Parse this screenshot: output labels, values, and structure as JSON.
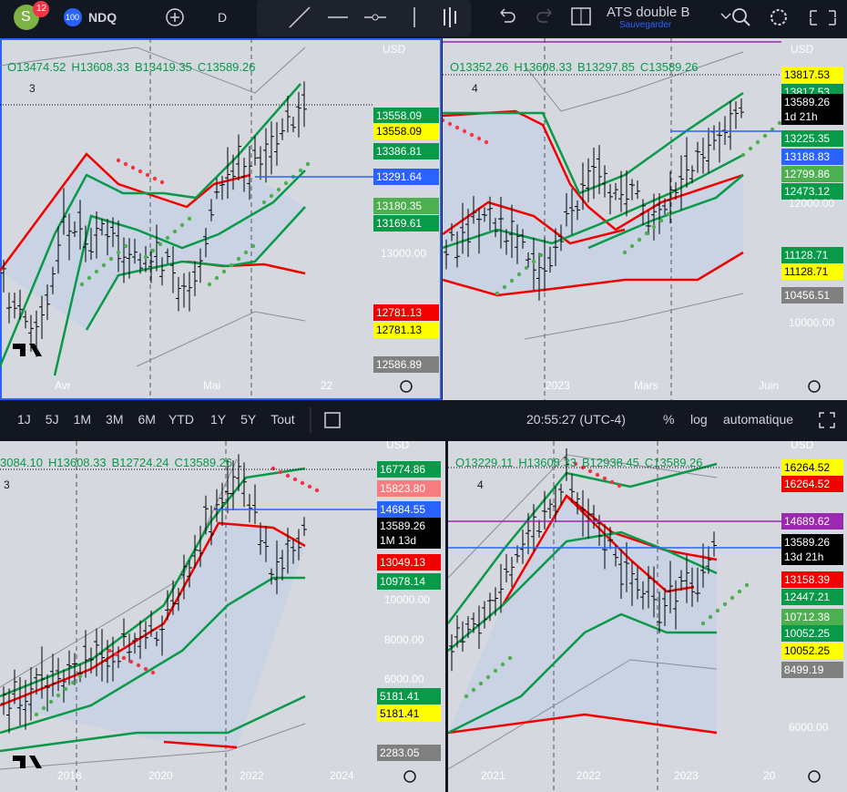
{
  "toolbar": {
    "avatar": "S",
    "badge": "12",
    "symbol_badge": "100",
    "symbol": "NDQ",
    "interval": "D",
    "layout_name": "ATS double B",
    "layout_status": "Sauvegarder"
  },
  "panels": [
    {
      "legend": [
        "O13474.52",
        "H13608.33",
        "B13419.35",
        "C13589.26"
      ],
      "count": "3",
      "currency": "USD",
      "tags": [
        {
          "text": "13558.09",
          "bg": "#089949",
          "fg": "#fff"
        },
        {
          "text": "13558.09",
          "bg": "#ffff00",
          "fg": "#000"
        },
        {
          "text": "13386.81",
          "bg": "#089949",
          "fg": "#fff"
        },
        {
          "text": "13291.64",
          "bg": "#2962ff",
          "fg": "#fff"
        },
        {
          "text": "13180.35",
          "bg": "#4caf50",
          "fg": "#fff"
        },
        {
          "text": "13169.61",
          "bg": "#089949",
          "fg": "#fff"
        },
        {
          "text": "12781.13",
          "bg": "#f20000",
          "fg": "#fff"
        },
        {
          "text": "12781.13",
          "bg": "#ffff00",
          "fg": "#000"
        },
        {
          "text": "12586.89",
          "bg": "#808080",
          "fg": "#fff"
        }
      ],
      "axis": [
        "13000.00"
      ],
      "times": [
        "Avr",
        "Mai",
        "22"
      ]
    },
    {
      "legend": [
        "O13352.26",
        "H13608.33",
        "B13297.85",
        "C13589.26"
      ],
      "count": "4",
      "currency": "USD",
      "tags": [
        {
          "text": "13817.53",
          "bg": "#ffff00",
          "fg": "#000"
        },
        {
          "text": "13817.53",
          "bg": "#089949",
          "fg": "#fff"
        },
        {
          "text": "13589.26",
          "bg": "#000000",
          "fg": "#fff",
          "sub": "1d 21h"
        },
        {
          "text": "13225.35",
          "bg": "#089949",
          "fg": "#fff"
        },
        {
          "text": "13188.83",
          "bg": "#2962ff",
          "fg": "#fff"
        },
        {
          "text": "12799.86",
          "bg": "#4caf50",
          "fg": "#fff"
        },
        {
          "text": "12473.12",
          "bg": "#089949",
          "fg": "#fff"
        },
        {
          "text": "11128.71",
          "bg": "#089949",
          "fg": "#fff"
        },
        {
          "text": "11128.71",
          "bg": "#ffff00",
          "fg": "#000"
        },
        {
          "text": "10456.51",
          "bg": "#808080",
          "fg": "#fff"
        }
      ],
      "axis": [
        "12000.00",
        "10000.00"
      ],
      "times": [
        "2023",
        "Mars",
        "Juin"
      ]
    },
    {
      "legend": [
        "3084.10",
        "H13608.33",
        "B12724.24",
        "C13589.26"
      ],
      "count": "3",
      "currency": "USD",
      "tags": [
        {
          "text": "16774.86",
          "bg": "#089949",
          "fg": "#fff"
        },
        {
          "text": "15823.80",
          "bg": "#f77c80",
          "fg": "#fff"
        },
        {
          "text": "14684.55",
          "bg": "#2962ff",
          "fg": "#fff"
        },
        {
          "text": "13589.26",
          "bg": "#000000",
          "fg": "#fff",
          "sub": "1M 13d"
        },
        {
          "text": "13049.13",
          "bg": "#f20000",
          "fg": "#fff"
        },
        {
          "text": "10978.14",
          "bg": "#089949",
          "fg": "#fff"
        },
        {
          "text": "5181.41",
          "bg": "#089949",
          "fg": "#fff"
        },
        {
          "text": "5181.41",
          "bg": "#ffff00",
          "fg": "#000"
        },
        {
          "text": "2283.05",
          "bg": "#808080",
          "fg": "#fff"
        }
      ],
      "axis": [
        "10000.00",
        "8000.00",
        "6000.00"
      ],
      "times": [
        "2018",
        "2020",
        "2022",
        "2024"
      ]
    },
    {
      "legend": [
        "O13229.11",
        "H13608.33",
        "B12938.45",
        "C13589.26"
      ],
      "count": "4",
      "currency": "USD",
      "tags": [
        {
          "text": "16264.52",
          "bg": "#ffff00",
          "fg": "#000"
        },
        {
          "text": "16264.52",
          "bg": "#f20000",
          "fg": "#fff"
        },
        {
          "text": "14689.62",
          "bg": "#9c27b0",
          "fg": "#fff"
        },
        {
          "text": "13589.26",
          "bg": "#000000",
          "fg": "#fff",
          "sub": "13d 21h"
        },
        {
          "text": "13158.39",
          "bg": "#f20000",
          "fg": "#fff"
        },
        {
          "text": "12447.21",
          "bg": "#089949",
          "fg": "#fff"
        },
        {
          "text": "10712.38",
          "bg": "#4caf50",
          "fg": "#fff"
        },
        {
          "text": "10052.25",
          "bg": "#089949",
          "fg": "#fff"
        },
        {
          "text": "10052.25",
          "bg": "#ffff00",
          "fg": "#000"
        },
        {
          "text": "8499.19",
          "bg": "#808080",
          "fg": "#fff"
        }
      ],
      "axis": [
        "6000.00"
      ],
      "times": [
        "2021",
        "2022",
        "2023",
        "20"
      ]
    }
  ],
  "range_bar": {
    "ranges": [
      "1J",
      "5J",
      "1M",
      "3M",
      "6M",
      "YTD",
      "1Y",
      "5Y",
      "Tout"
    ],
    "clock": "20:55:27 (UTC-4)",
    "percent": "%",
    "log": "log",
    "auto": "automatique"
  }
}
